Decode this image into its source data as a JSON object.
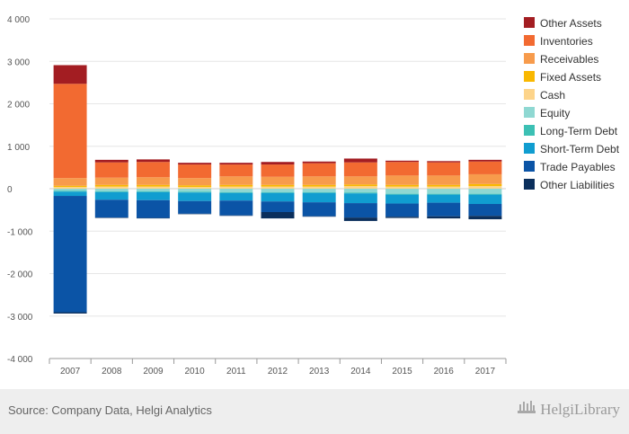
{
  "chart_data": {
    "type": "bar",
    "stacked": true,
    "categories": [
      "2007",
      "2008",
      "2009",
      "2010",
      "2011",
      "2012",
      "2013",
      "2014",
      "2015",
      "2016",
      "2017"
    ],
    "ylim": [
      -4000,
      4000
    ],
    "yticks": [
      4000,
      3000,
      2000,
      1000,
      0,
      -1000,
      -2000,
      -3000,
      -4000
    ],
    "ytick_labels": [
      "4 000",
      "3 000",
      "2 000",
      "1 000",
      "0",
      "-1 000",
      "-2 000",
      "-3 000",
      "-4 000"
    ],
    "grid": true,
    "legend_position": "right",
    "series": [
      {
        "name": "Other Assets",
        "color": "#a31d22",
        "values": [
          440,
          60,
          60,
          40,
          40,
          60,
          40,
          90,
          30,
          30,
          40
        ]
      },
      {
        "name": "Inventories",
        "color": "#f26a31",
        "values": [
          2220,
          360,
          360,
          320,
          280,
          290,
          310,
          330,
          320,
          310,
          300
        ]
      },
      {
        "name": "Receivables",
        "color": "#f79b4c",
        "values": [
          180,
          170,
          180,
          170,
          200,
          190,
          200,
          190,
          220,
          220,
          230
        ]
      },
      {
        "name": "Fixed Assets",
        "color": "#f9b800",
        "values": [
          30,
          40,
          40,
          40,
          40,
          40,
          40,
          40,
          40,
          40,
          50
        ]
      },
      {
        "name": "Cash",
        "color": "#fdd48a",
        "values": [
          40,
          50,
          50,
          40,
          50,
          50,
          50,
          60,
          50,
          50,
          60
        ]
      },
      {
        "name": "Equity",
        "color": "#8fd8d2",
        "values": [
          -50,
          -60,
          -60,
          -70,
          -80,
          -80,
          -80,
          -90,
          -120,
          -120,
          -120
        ]
      },
      {
        "name": "Long-Term Debt",
        "color": "#3cc0b4",
        "values": [
          -20,
          -20,
          -20,
          -20,
          -20,
          -20,
          -20,
          -20,
          -20,
          -20,
          -20
        ]
      },
      {
        "name": "Short-Term Debt",
        "color": "#109dd0",
        "values": [
          -100,
          -180,
          -190,
          -200,
          -180,
          -200,
          -220,
          -230,
          -210,
          -190,
          -220
        ]
      },
      {
        "name": "Trade Payables",
        "color": "#0b54a6",
        "values": [
          -2740,
          -420,
          -420,
          -300,
          -350,
          -250,
          -330,
          -340,
          -310,
          -320,
          -280
        ]
      },
      {
        "name": "Other Liabilities",
        "color": "#0b2f5c",
        "values": [
          -30,
          -10,
          -10,
          -10,
          -10,
          -150,
          -10,
          -80,
          -30,
          -50,
          -80
        ]
      }
    ]
  },
  "footer": {
    "source": "Source: Company Data, Helgi Analytics",
    "brand": "HelgiLibrary"
  }
}
